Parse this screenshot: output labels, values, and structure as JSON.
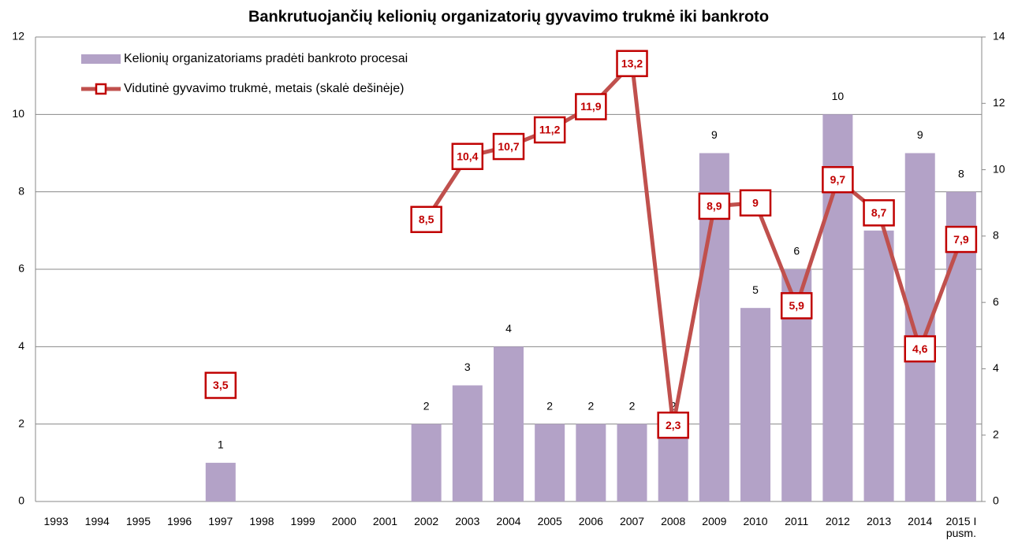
{
  "chart_data": {
    "type": "bar_line",
    "title": "Bankrutuojančių kelionių organizatorių gyvavimo trukmė iki bankroto",
    "categories": [
      "1993",
      "1994",
      "1995",
      "1996",
      "1997",
      "1998",
      "1999",
      "2000",
      "2001",
      "2002",
      "2003",
      "2004",
      "2005",
      "2006",
      "2007",
      "2008",
      "2009",
      "2010",
      "2011",
      "2012",
      "2013",
      "2014",
      "2015 I pusm."
    ],
    "series": [
      {
        "name": "Kelionių organizatoriams pradėti bankroto procesai",
        "type": "bar",
        "color": "#b3a2c7",
        "values": [
          null,
          null,
          null,
          null,
          1,
          null,
          null,
          null,
          null,
          2,
          3,
          4,
          2,
          2,
          2,
          2,
          9,
          5,
          6,
          10,
          7,
          9,
          8
        ]
      },
      {
        "name": "Vidutinė gyvavimo trukmė, metais (skalė dešinėje)",
        "type": "line",
        "axis": "y2",
        "color": "#c0504d",
        "marker_color": "#c00000",
        "values": [
          null,
          null,
          null,
          null,
          3.5,
          null,
          null,
          null,
          null,
          8.5,
          10.4,
          10.7,
          11.2,
          11.9,
          13.2,
          2.3,
          8.9,
          9,
          5.9,
          9.7,
          8.7,
          4.6,
          7.9
        ],
        "value_labels": [
          null,
          null,
          null,
          null,
          "3,5",
          null,
          null,
          null,
          null,
          "8,5",
          "10,4",
          "10,7",
          "11,2",
          "11,9",
          "13,2",
          "2,3",
          "8,9",
          "9",
          "5,9",
          "9,7",
          "8,7",
          "4,6",
          "7,9"
        ]
      }
    ],
    "ylim": [
      0,
      12
    ],
    "yticks": [
      0,
      2,
      4,
      6,
      8,
      10,
      12
    ],
    "y2lim": [
      0,
      14
    ],
    "y2ticks": [
      0,
      2,
      4,
      6,
      8,
      10,
      12,
      14
    ],
    "grid": true,
    "legend": "top-left"
  }
}
